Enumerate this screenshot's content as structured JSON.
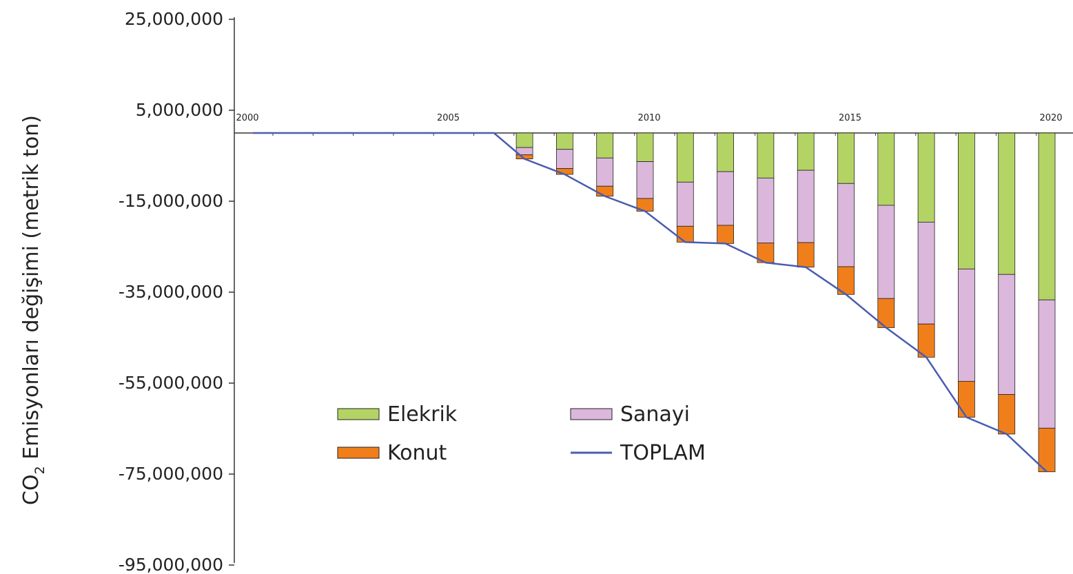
{
  "chart_data": {
    "type": "bar",
    "stacked": true,
    "ylabel": "CO2 Emisyonları değişimi (metrik ton)",
    "ylabel_main": "CO",
    "ylabel_sub": "2",
    "ylabel_rest": " Emisyonları değişimi (metrik ton)",
    "ylim": [
      -95000000,
      25000000
    ],
    "yticks": [
      25000000,
      5000000,
      -15000000,
      -35000000,
      -55000000,
      -75000000,
      -95000000
    ],
    "ytick_labels": [
      "25,000,000",
      "5,000,000",
      "-15,000,000",
      "-35,000,000",
      "-55,000,000",
      "-75,000,000",
      "-95,000,000"
    ],
    "x_range": [
      2000,
      2020
    ],
    "xticks": [
      2000,
      2005,
      2010,
      2015,
      2020
    ],
    "xtick_labels": [
      "2000",
      "2005",
      "2010",
      "2015",
      "2020"
    ],
    "categories": [
      "2007",
      "2008",
      "2009",
      "2010",
      "2011",
      "2012",
      "2013",
      "2014",
      "2015",
      "2016",
      "2017",
      "2018",
      "2019",
      "2020"
    ],
    "colors": {
      "Elekrik": "#b3d464",
      "Sanayi": "#dbb7dc",
      "Konut": "#f07f1b",
      "TOPLAM": "#4a5cb0"
    },
    "series": [
      {
        "name": "Elekrik",
        "values": [
          -3200000,
          -3600000,
          -5500000,
          -6300000,
          -10800000,
          -8500000,
          -9900000,
          -8200000,
          -11100000,
          -15900000,
          -19600000,
          -29900000,
          -31100000,
          -36700000
        ]
      },
      {
        "name": "Sanayi",
        "values": [
          -1600000,
          -4200000,
          -6200000,
          -8100000,
          -9700000,
          -11800000,
          -14300000,
          -15900000,
          -18300000,
          -20500000,
          -22400000,
          -24700000,
          -26400000,
          -28200000
        ]
      },
      {
        "name": "Konut",
        "values": [
          -900000,
          -1300000,
          -2200000,
          -2800000,
          -3500000,
          -4000000,
          -4300000,
          -5400000,
          -6100000,
          -6400000,
          -7300000,
          -7900000,
          -8700000,
          -9600000
        ]
      },
      {
        "name": "TOPLAM",
        "type": "line",
        "x": [
          2000,
          2006,
          2007,
          2008,
          2009,
          2010,
          2011,
          2012,
          2013,
          2014,
          2015,
          2016,
          2017,
          2018,
          2019,
          2020
        ],
        "values": [
          0,
          0,
          -5700000,
          -9100000,
          -13900000,
          -17200000,
          -24000000,
          -24300000,
          -28500000,
          -29500000,
          -35500000,
          -42800000,
          -49300000,
          -62500000,
          -66200000,
          -74500000
        ]
      }
    ],
    "legend": {
      "placement": "center",
      "items": [
        {
          "name": "Elekrik",
          "kind": "bar"
        },
        {
          "name": "Sanayi",
          "kind": "bar"
        },
        {
          "name": "Konut",
          "kind": "bar"
        },
        {
          "name": "TOPLAM",
          "kind": "line"
        }
      ]
    }
  }
}
